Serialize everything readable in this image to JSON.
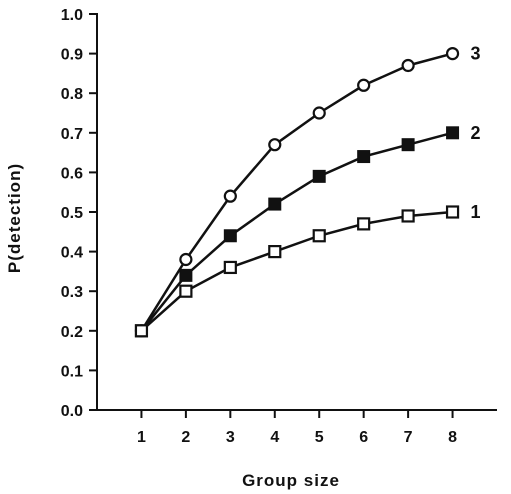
{
  "chart_data": {
    "type": "line",
    "title": "",
    "xlabel": "Group size",
    "ylabel": "P(detection)",
    "x": [
      1,
      2,
      3,
      4,
      5,
      6,
      7,
      8
    ],
    "xlim": [
      0,
      9
    ],
    "ylim": [
      0,
      1.0
    ],
    "x_ticks": [
      "1",
      "2",
      "3",
      "4",
      "5",
      "6",
      "7",
      "8"
    ],
    "y_ticks": [
      "0.0",
      "0.1",
      "0.2",
      "0.3",
      "0.4",
      "0.5",
      "0.6",
      "0.7",
      "0.8",
      "0.9",
      "1.0"
    ],
    "grid": false,
    "legend": "none",
    "series": [
      {
        "name": "3",
        "marker": "open-circle",
        "values": [
          0.2,
          0.38,
          0.54,
          0.67,
          0.75,
          0.82,
          0.87,
          0.9
        ]
      },
      {
        "name": "2",
        "marker": "filled-square",
        "values": [
          0.2,
          0.34,
          0.44,
          0.52,
          0.59,
          0.64,
          0.67,
          0.7
        ]
      },
      {
        "name": "1",
        "marker": "open-square",
        "values": [
          0.2,
          0.3,
          0.36,
          0.4,
          0.44,
          0.47,
          0.49,
          0.5
        ]
      }
    ],
    "colors": {
      "ink": "#111111",
      "background": "#ffffff"
    }
  }
}
